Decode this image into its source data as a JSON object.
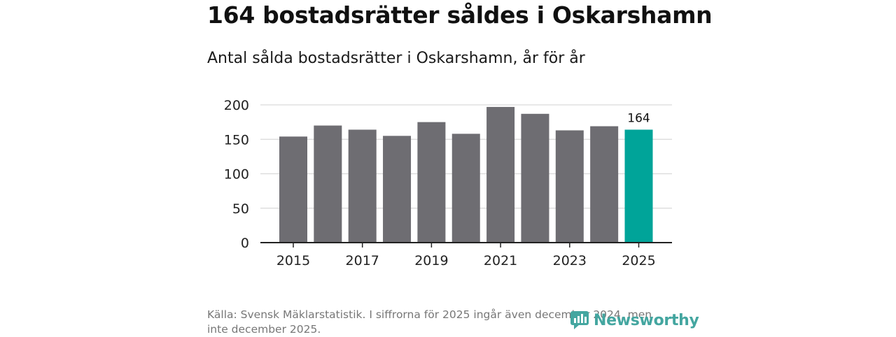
{
  "headline": "164 bostadsrätter såldes i Oskarshamn",
  "subtitle": "Antal sålda bostadsrätter i Oskarshamn, år för år",
  "source": "Källa: Svensk Mäklarstatistik. I siffrorna för 2025 ingår även december 2024, men inte december 2025.",
  "brand": {
    "name": "Newsworthy",
    "icon": "newsworthy-logo-icon"
  },
  "colors": {
    "bar": "#6e6d72",
    "highlight": "#00a499",
    "grid": "#d9d9d9",
    "axis": "#222222",
    "brand": "#44a6a0"
  },
  "chart_data": {
    "type": "bar",
    "title": "Antal sålda bostadsrätter i Oskarshamn, år för år",
    "xlabel": "",
    "ylabel": "",
    "categories": [
      "2015",
      "2016",
      "2017",
      "2018",
      "2019",
      "2020",
      "2021",
      "2022",
      "2023",
      "2024",
      "2025"
    ],
    "values": [
      154,
      170,
      164,
      155,
      175,
      158,
      197,
      187,
      163,
      169,
      164
    ],
    "highlight_index": 10,
    "data_labels": [
      {
        "index": 10,
        "text": "164"
      }
    ],
    "x_tick_labels": [
      "2015",
      "2017",
      "2019",
      "2021",
      "2023",
      "2025"
    ],
    "y_ticks": [
      0,
      50,
      100,
      150,
      200
    ],
    "ylim": [
      0,
      200
    ],
    "grid": true
  }
}
